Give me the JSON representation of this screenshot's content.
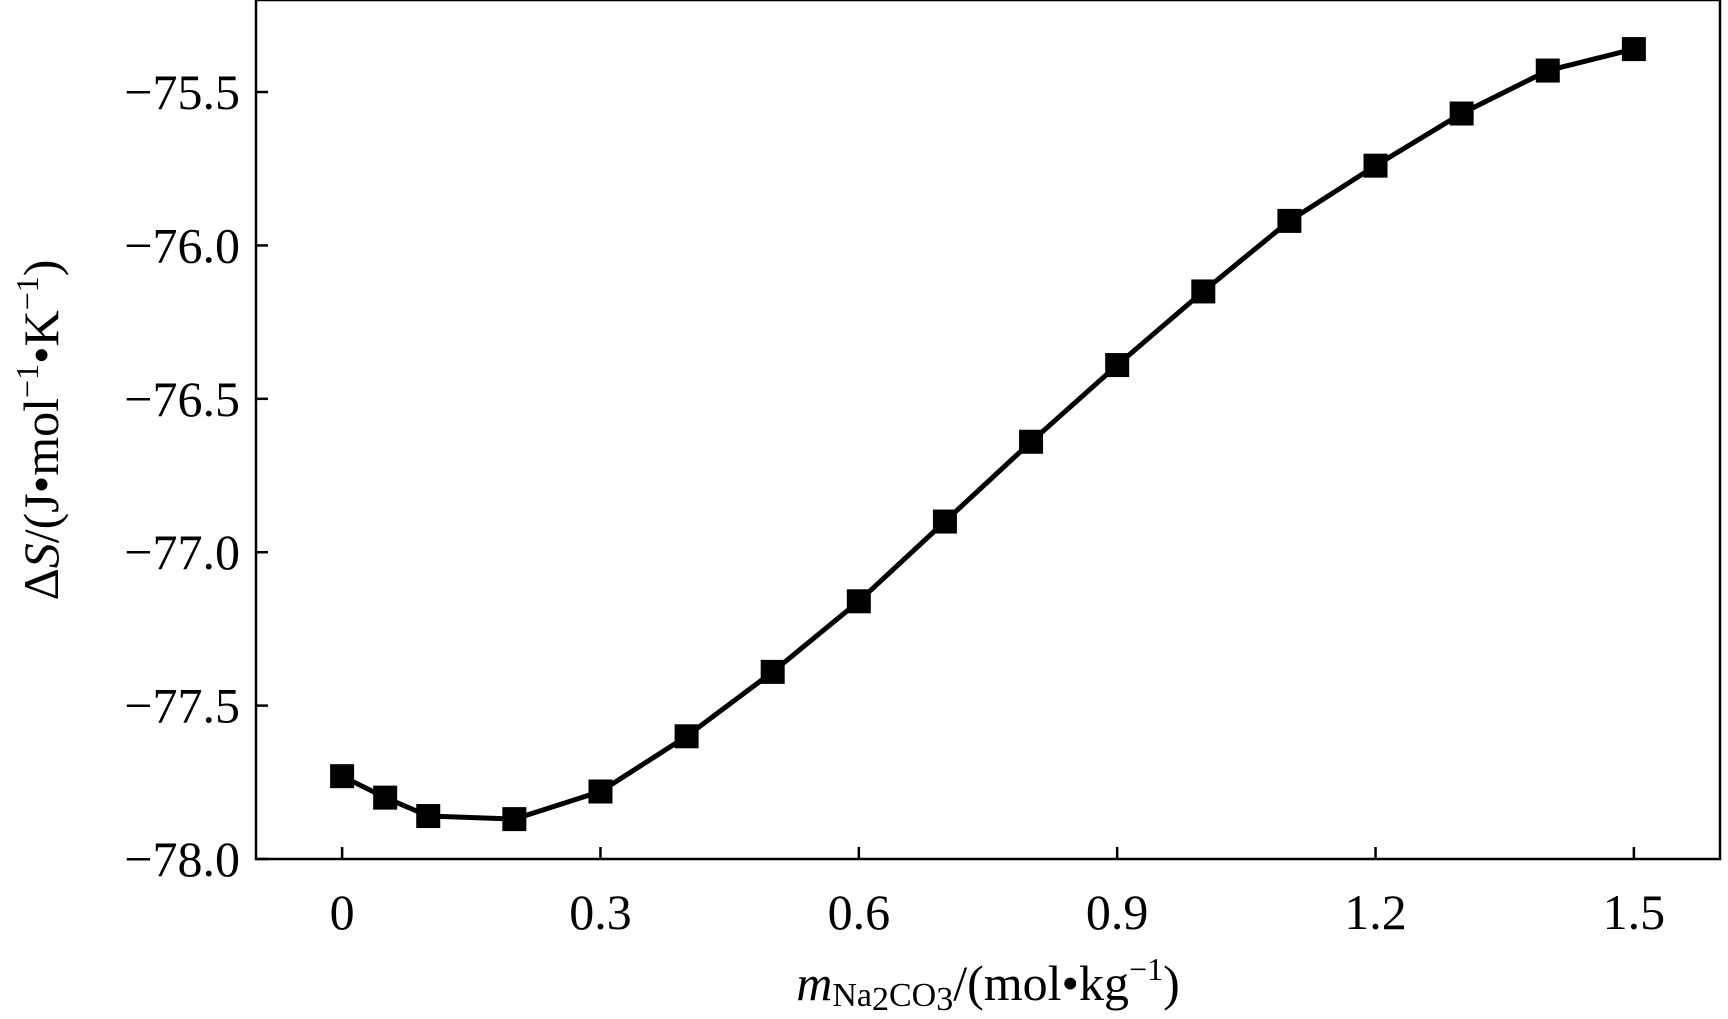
{
  "chart_data": {
    "type": "line",
    "x": [
      0,
      0.05,
      0.1,
      0.2,
      0.3,
      0.4,
      0.5,
      0.6,
      0.7,
      0.8,
      0.9,
      1.0,
      1.1,
      1.2,
      1.3,
      1.4,
      1.5
    ],
    "series": [
      {
        "values": [
          -77.73,
          -77.8,
          -77.86,
          -77.87,
          -77.78,
          -77.6,
          -77.39,
          -77.16,
          -76.9,
          -76.64,
          -76.39,
          -76.15,
          -75.92,
          -75.74,
          -75.57,
          -75.43,
          -75.36
        ],
        "marker": "square",
        "color": "#000000"
      }
    ],
    "xlim": [
      -0.1,
      1.6
    ],
    "ylim": [
      -78.0,
      -75.2
    ],
    "xticks": [
      "0",
      "0.3",
      "0.6",
      "0.9",
      "1.2",
      "1.5"
    ],
    "xtick_values": [
      0,
      0.3,
      0.6,
      0.9,
      1.2,
      1.5
    ],
    "yticks": [
      "−78.0",
      "−77.5",
      "−77.0",
      "−76.5",
      "−76.0",
      "−75.5"
    ],
    "ytick_values": [
      -78.0,
      -77.5,
      -77.0,
      -76.5,
      -76.0,
      -75.5
    ],
    "xlabel": {
      "m": "m",
      "Na": "Na",
      "sub2": "2",
      "CO": "CO",
      "sub3": "3",
      "unit": "/(mol•kg",
      "exp": "−1",
      "close": ")"
    },
    "ylabel": {
      "delta": "Δ",
      "S": "S",
      "unit1": "/(J•mol",
      "exp1": "−1",
      "unit2": "•K",
      "exp2": "−1",
      "close": ")"
    },
    "grid": false,
    "legend": "none"
  }
}
